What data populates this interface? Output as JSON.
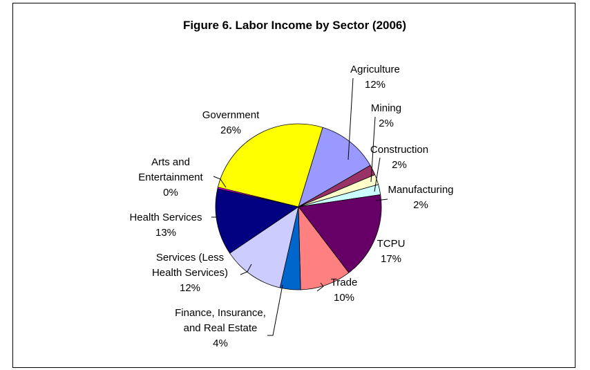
{
  "chart_data": {
    "type": "pie",
    "title": "Figure 6. Labor Income by Sector (2006)",
    "slices": [
      {
        "name": "Agriculture",
        "value": 12,
        "label": "12%",
        "color": "#9999ff"
      },
      {
        "name": "Mining",
        "value": 2,
        "label": "2%",
        "color": "#993366"
      },
      {
        "name": "Construction",
        "value": 2,
        "label": "2%",
        "color": "#ffffcc"
      },
      {
        "name": "Manufacturing",
        "value": 2,
        "label": "2%",
        "color": "#ccffff"
      },
      {
        "name": "TCPU",
        "value": 17,
        "label": "17%",
        "color": "#660066"
      },
      {
        "name": "Trade",
        "value": 10,
        "label": "10%",
        "color": "#ff8080"
      },
      {
        "name": "Finance, Insurance, and Real Estate",
        "value": 4,
        "label": "4%",
        "color": "#0066cc"
      },
      {
        "name": "Services (Less Health Services)",
        "value": 12,
        "label": "12%",
        "color": "#ccccff"
      },
      {
        "name": "Health Services",
        "value": 13,
        "label": "13%",
        "color": "#000080"
      },
      {
        "name": "Arts and Entertainment",
        "value": 0.3,
        "label": "0%",
        "color": "#ff00ff"
      },
      {
        "name": "Government",
        "value": 26,
        "label": "26%",
        "color": "#ffff00"
      }
    ]
  }
}
